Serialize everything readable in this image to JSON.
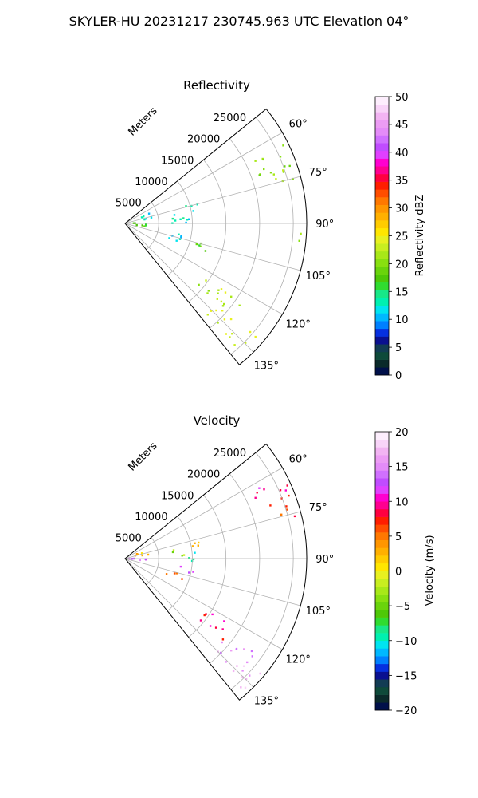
{
  "figure": {
    "suptitle": "SKYLER-HU  20231217  230745.963 UTC Elevation 04°"
  },
  "chart_data": [
    {
      "type": "heatmap",
      "title": "Reflectivity",
      "projection": "polar-sector",
      "range_axis_label": "Meters",
      "range_ticks": [
        5000,
        10000,
        15000,
        20000,
        25000
      ],
      "range_tick_labels": [
        "5000",
        "10000",
        "15000",
        "20000",
        "25000"
      ],
      "range_max": 27000,
      "azimuth_range_deg": [
        51,
        141
      ],
      "azimuth_ticks": [
        60,
        75,
        90,
        105,
        120,
        135
      ],
      "azimuth_tick_labels": [
        "60°",
        "75°",
        "90°",
        "105°",
        "120°",
        "135°"
      ],
      "grid": true,
      "colorbar": {
        "label": "Reflectivity dBZ",
        "min": 0,
        "max": 50,
        "ticks": [
          0,
          5,
          10,
          15,
          20,
          25,
          30,
          35,
          40,
          45,
          50
        ],
        "tick_labels": [
          "0",
          "5",
          "10",
          "15",
          "20",
          "25",
          "30",
          "35",
          "40",
          "45",
          "50"
        ],
        "colors": [
          "#00104a",
          "#0a2a2a",
          "#0e4a3a",
          "#123c54",
          "#0a1090",
          "#0630e0",
          "#0080ff",
          "#00b8ff",
          "#00e4f0",
          "#00f0b0",
          "#18e888",
          "#30dc30",
          "#4ec808",
          "#6ad40c",
          "#88e010",
          "#a8e818",
          "#c8ee20",
          "#e8f020",
          "#ffe600",
          "#ffcc00",
          "#ffb000",
          "#ff9600",
          "#ff7800",
          "#ff4e00",
          "#ff1e00",
          "#ff0040",
          "#ff0090",
          "#ff00d0",
          "#e040ff",
          "#c04cff",
          "#d070ff",
          "#e48cf8",
          "#ec9cf4",
          "#f2b4f2",
          "#f8d4f8",
          "#fdeefd"
        ]
      },
      "echo_regions": [
        {
          "az": [
            62,
            72
          ],
          "r": [
            20000,
            27000
          ],
          "value": 20
        },
        {
          "az": [
            70,
            76
          ],
          "r": [
            23000,
            27000
          ],
          "value": 22
        },
        {
          "az": [
            72,
            80
          ],
          "r": [
            9000,
            12000
          ],
          "value": 14
        },
        {
          "az": [
            80,
            90
          ],
          "r": [
            6000,
            11000
          ],
          "value": 13
        },
        {
          "az": [
            66,
            80
          ],
          "r": [
            1500,
            4000
          ],
          "value": 12
        },
        {
          "az": [
            88,
            100
          ],
          "r": [
            500,
            3500
          ],
          "value": 17
        },
        {
          "az": [
            100,
            112
          ],
          "r": [
            6500,
            9500
          ],
          "value": 11
        },
        {
          "az": [
            104,
            110
          ],
          "r": [
            11000,
            16000
          ],
          "value": 18
        },
        {
          "az": [
            122,
            132
          ],
          "r": [
            14000,
            21000
          ],
          "value": 22
        },
        {
          "az": [
            128,
            138
          ],
          "r": [
            18000,
            26000
          ],
          "value": 23
        },
        {
          "az": [
            92,
            96
          ],
          "r": [
            24000,
            26500
          ],
          "value": 21
        }
      ]
    },
    {
      "type": "heatmap",
      "title": "Velocity",
      "projection": "polar-sector",
      "range_axis_label": "Meters",
      "range_ticks": [
        5000,
        10000,
        15000,
        20000,
        25000
      ],
      "range_tick_labels": [
        "5000",
        "10000",
        "15000",
        "20000",
        "25000"
      ],
      "range_max": 27000,
      "azimuth_range_deg": [
        51,
        141
      ],
      "azimuth_ticks": [
        60,
        75,
        90,
        105,
        120,
        135
      ],
      "azimuth_tick_labels": [
        "60°",
        "75°",
        "90°",
        "105°",
        "120°",
        "135°"
      ],
      "grid": true,
      "colorbar": {
        "label": "Velocity (m/s)",
        "min": -20,
        "max": 20,
        "ticks": [
          -20,
          -15,
          -10,
          -5,
          0,
          5,
          10,
          15,
          20
        ],
        "tick_labels": [
          "−20",
          "−15",
          "−10",
          "−5",
          "0",
          "5",
          "10",
          "15",
          "20"
        ],
        "colors": [
          "#00104a",
          "#0a2a2a",
          "#0e4a3a",
          "#123c54",
          "#0a1090",
          "#0630e0",
          "#0080ff",
          "#00b8ff",
          "#00e4f0",
          "#00f0b0",
          "#18e888",
          "#30dc30",
          "#4ec808",
          "#6ad40c",
          "#88e010",
          "#a8e818",
          "#c8ee20",
          "#e8f020",
          "#ffe600",
          "#ffcc00",
          "#ffb000",
          "#ff9600",
          "#ff7800",
          "#ff4e00",
          "#ff1e00",
          "#ff0040",
          "#ff0090",
          "#ff00d0",
          "#e040ff",
          "#c04cff",
          "#d070ff",
          "#e48cf8",
          "#ec9cf4",
          "#f2b4f2",
          "#f8d4f8",
          "#fdeefd"
        ]
      },
      "echo_regions": [
        {
          "az": [
            62,
            68
          ],
          "r": [
            21000,
            27000
          ],
          "value": 10
        },
        {
          "az": [
            68,
            76
          ],
          "r": [
            22000,
            27000
          ],
          "value": 7
        },
        {
          "az": [
            72,
            80
          ],
          "r": [
            9000,
            12000
          ],
          "value": 3
        },
        {
          "az": [
            80,
            88
          ],
          "r": [
            7000,
            10000
          ],
          "value": -4
        },
        {
          "az": [
            84,
            92
          ],
          "r": [
            8000,
            11000
          ],
          "value": -10
        },
        {
          "az": [
            66,
            80
          ],
          "r": [
            1500,
            4000
          ],
          "value": 2
        },
        {
          "az": [
            88,
            100
          ],
          "r": [
            500,
            3500
          ],
          "value": 14
        },
        {
          "az": [
            98,
            104
          ],
          "r": [
            8000,
            10500
          ],
          "value": 13
        },
        {
          "az": [
            104,
            112
          ],
          "r": [
            6500,
            9500
          ],
          "value": 6
        },
        {
          "az": [
            122,
            130
          ],
          "r": [
            14000,
            20000
          ],
          "value": 9
        },
        {
          "az": [
            126,
            136
          ],
          "r": [
            18000,
            25000
          ],
          "value": 15
        },
        {
          "az": [
            130,
            140
          ],
          "r": [
            22000,
            26500
          ],
          "value": 17
        }
      ]
    }
  ]
}
